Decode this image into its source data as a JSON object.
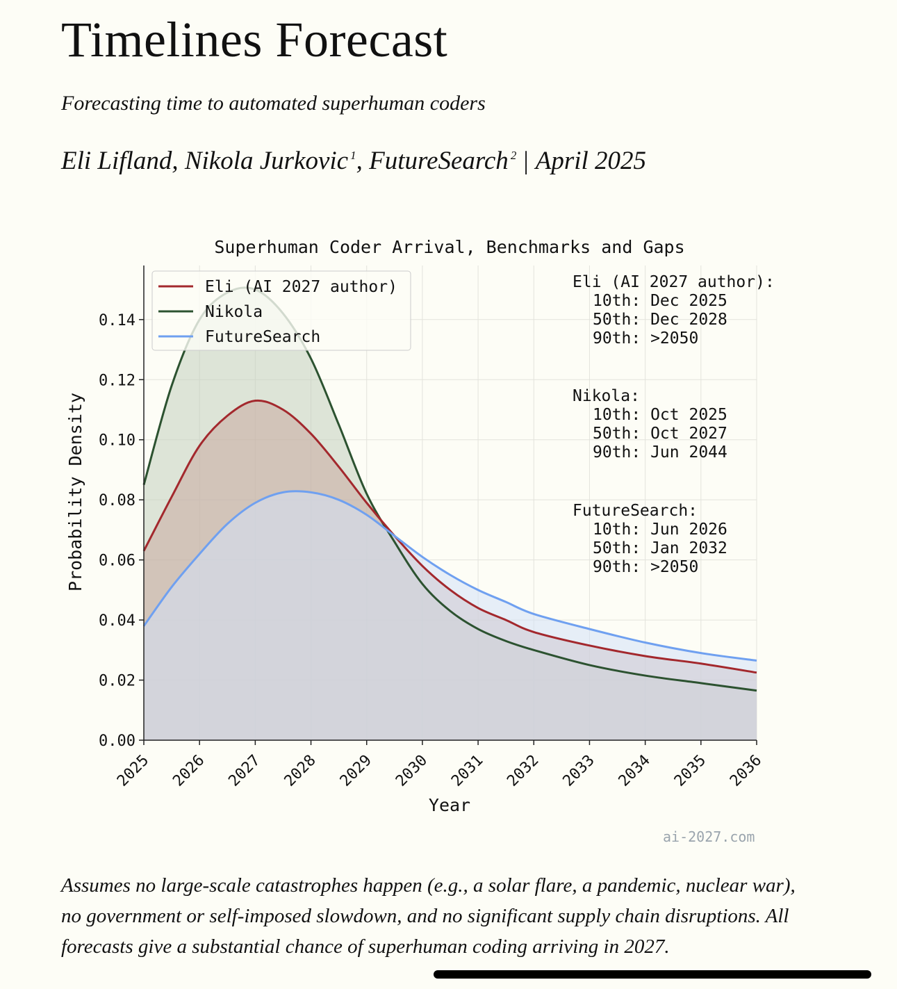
{
  "page": {
    "title": "Timelines Forecast",
    "subtitle": "Forecasting time to automated superhuman coders",
    "byline": {
      "author1": "Eli Lifland,",
      "author2": "Nikola Jurkovic",
      "sup1": "1",
      "author3": ", FutureSearch",
      "sup2": "2",
      "separator": "|",
      "date": "April 2025"
    },
    "watermark": "ai-2027.com",
    "footnote": "Assumes no large-scale catastrophes happen (e.g., a solar flare, a pandemic, nuclear war), no government or self-imposed slowdown, and no significant supply chain disruptions. All forecasts give a substantial chance of superhuman coding arriving in 2027."
  },
  "chart_data": {
    "type": "area",
    "title": "Superhuman Coder Arrival, Benchmarks and Gaps",
    "xlabel": "Year",
    "ylabel": "Probability Density",
    "xlim": [
      2025,
      2036
    ],
    "ylim": [
      0,
      0.158
    ],
    "xticks": [
      "2025",
      "2026",
      "2027",
      "2028",
      "2029",
      "2030",
      "2031",
      "2032",
      "2033",
      "2034",
      "2035",
      "2036"
    ],
    "yticks": [
      "0.00",
      "0.02",
      "0.04",
      "0.06",
      "0.08",
      "0.10",
      "0.12",
      "0.14"
    ],
    "grid": true,
    "legend_position": "top-left",
    "series": [
      {
        "name": "Eli (AI 2027 author)",
        "color": "#a3282d",
        "fill": "#c9a9a0",
        "x": [
          2025,
          2025.5,
          2026,
          2026.5,
          2027,
          2027.5,
          2028,
          2028.5,
          2029,
          2029.5,
          2030,
          2030.5,
          2031,
          2031.5,
          2032,
          2033,
          2034,
          2035,
          2036
        ],
        "y": [
          0.063,
          0.081,
          0.098,
          0.108,
          0.113,
          0.11,
          0.102,
          0.091,
          0.079,
          0.068,
          0.058,
          0.05,
          0.044,
          0.04,
          0.036,
          0.0315,
          0.028,
          0.0255,
          0.0225
        ]
      },
      {
        "name": "Nikola",
        "color": "#2c5230",
        "fill": "#c3cfbd",
        "x": [
          2025,
          2025.5,
          2026,
          2026.5,
          2027,
          2027.5,
          2028,
          2028.5,
          2029,
          2029.5,
          2030,
          2030.5,
          2031,
          2031.5,
          2032,
          2033,
          2034,
          2035,
          2036
        ],
        "y": [
          0.085,
          0.118,
          0.14,
          0.149,
          0.15,
          0.142,
          0.127,
          0.105,
          0.082,
          0.066,
          0.052,
          0.043,
          0.037,
          0.033,
          0.03,
          0.025,
          0.0215,
          0.019,
          0.0165
        ]
      },
      {
        "name": "FutureSearch",
        "color": "#6fa0f0",
        "fill": "#d4e2f8",
        "x": [
          2025,
          2025.5,
          2026,
          2026.5,
          2027,
          2027.5,
          2028,
          2028.5,
          2029,
          2029.5,
          2030,
          2030.5,
          2031,
          2031.5,
          2032,
          2033,
          2034,
          2035,
          2036
        ],
        "y": [
          0.038,
          0.051,
          0.062,
          0.072,
          0.079,
          0.0825,
          0.0825,
          0.08,
          0.075,
          0.068,
          0.061,
          0.055,
          0.05,
          0.046,
          0.042,
          0.037,
          0.0325,
          0.029,
          0.0265
        ]
      }
    ],
    "annotations": [
      {
        "header": "Eli (AI 2027 author):",
        "lines": [
          "10th: Dec 2025",
          "50th: Dec 2028",
          "90th: >2050"
        ]
      },
      {
        "header": "Nikola:",
        "lines": [
          "10th: Oct 2025",
          "50th: Oct 2027",
          "90th: Jun 2044"
        ]
      },
      {
        "header": "FutureSearch:",
        "lines": [
          "10th: Jun 2026",
          "50th: Jan 2032",
          "90th: >2050"
        ]
      }
    ]
  }
}
